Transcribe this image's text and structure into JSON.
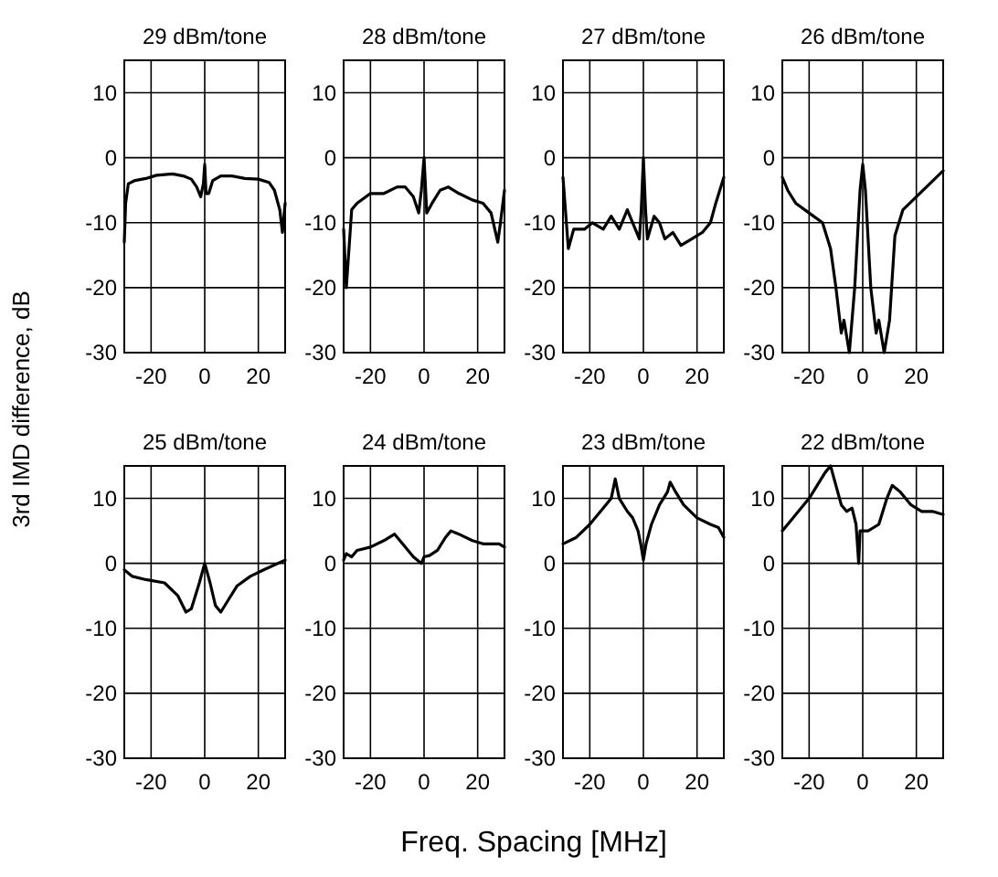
{
  "chart_data": [
    {
      "type": "line",
      "title": "29 dBm/tone",
      "ylabel": "3rd IMD difference, dB",
      "xlim": [
        -30,
        30
      ],
      "ylim": [
        -30,
        15
      ],
      "xticks": [
        -20,
        0,
        20
      ],
      "yticks": [
        -30,
        -20,
        -10,
        0,
        10
      ],
      "grid": true,
      "x": [
        -30,
        -29.5,
        -28.5,
        -26,
        -22,
        -18,
        -12,
        -8,
        -5,
        -3,
        -1.5,
        -0.5,
        0,
        0.5,
        1.5,
        3,
        6,
        10,
        15,
        20,
        24,
        26,
        28,
        29,
        30
      ],
      "series": [
        {
          "color": "#000000",
          "values": [
            -13,
            -7,
            -4,
            -3.5,
            -3.2,
            -2.7,
            -2.5,
            -2.8,
            -3.3,
            -4.5,
            -6,
            -4,
            -1,
            -5.5,
            -5.5,
            -3.5,
            -2.8,
            -2.8,
            -3.2,
            -3.3,
            -3.8,
            -5,
            -8,
            -11.5,
            -7
          ]
        }
      ]
    },
    {
      "type": "line",
      "title": "28 dBm/tone",
      "xlim": [
        -30,
        30
      ],
      "ylim": [
        -30,
        15
      ],
      "xticks": [
        -20,
        0,
        20
      ],
      "yticks": [
        -30,
        -20,
        -10,
        0,
        10
      ],
      "grid": true,
      "x": [
        -30,
        -29,
        -27,
        -25,
        -20,
        -15,
        -10,
        -7,
        -4,
        -2,
        -1,
        0,
        1,
        3,
        6,
        9,
        13,
        18,
        22,
        25,
        27.5,
        28.5,
        30
      ],
      "series": [
        {
          "color": "#000000",
          "values": [
            -11,
            -20,
            -8,
            -7,
            -5.5,
            -5.5,
            -4.5,
            -4.5,
            -6,
            -8.5,
            -5,
            0,
            -8.5,
            -7,
            -5,
            -4.5,
            -5.5,
            -6.5,
            -7,
            -8.5,
            -13,
            -10,
            -5
          ]
        }
      ]
    },
    {
      "type": "line",
      "title": "27 dBm/tone",
      "xlim": [
        -30,
        30
      ],
      "ylim": [
        -30,
        15
      ],
      "xticks": [
        -20,
        0,
        20
      ],
      "yticks": [
        -30,
        -20,
        -10,
        0,
        10
      ],
      "grid": true,
      "x": [
        -30,
        -28,
        -26,
        -22,
        -19,
        -15,
        -12,
        -9,
        -6,
        -4,
        -1.5,
        -0.8,
        0,
        0.8,
        1.5,
        4,
        6,
        8,
        11,
        14,
        18,
        22,
        25,
        27,
        30
      ],
      "series": [
        {
          "color": "#000000",
          "values": [
            -3,
            -14,
            -11,
            -11,
            -10,
            -11,
            -9,
            -11,
            -8,
            -10,
            -12.5,
            -8,
            0,
            -8,
            -12.5,
            -9,
            -10,
            -12.5,
            -11.5,
            -13.5,
            -12.5,
            -11.5,
            -10,
            -7,
            -3
          ]
        }
      ]
    },
    {
      "type": "line",
      "title": "26 dBm/tone",
      "xlim": [
        -30,
        30
      ],
      "ylim": [
        -30,
        15
      ],
      "xticks": [
        -20,
        0,
        20
      ],
      "yticks": [
        -30,
        -20,
        -10,
        0,
        10
      ],
      "grid": true,
      "x": [
        -30,
        -28,
        -25,
        -20,
        -15,
        -12,
        -10,
        -8,
        -7,
        -5,
        -3,
        -1,
        0,
        1,
        3,
        5,
        6,
        8,
        10,
        12,
        15,
        20,
        25,
        30
      ],
      "series": [
        {
          "color": "#000000",
          "values": [
            -3,
            -5,
            -7,
            -8.5,
            -10,
            -14,
            -20,
            -27,
            -25,
            -30,
            -20,
            -5,
            -1,
            -5,
            -20,
            -27,
            -25,
            -30,
            -25,
            -12,
            -8,
            -6,
            -4,
            -2
          ]
        }
      ]
    },
    {
      "type": "line",
      "title": "25 dBm/tone",
      "xlim": [
        -30,
        30
      ],
      "ylim": [
        -30,
        15
      ],
      "xticks": [
        -20,
        0,
        20
      ],
      "yticks": [
        -30,
        -20,
        -10,
        0,
        10
      ],
      "grid": true,
      "x": [
        -30,
        -27,
        -22,
        -15,
        -10,
        -7,
        -5,
        -2,
        0,
        2,
        4,
        6,
        9,
        12,
        17,
        22,
        30
      ],
      "series": [
        {
          "color": "#000000",
          "values": [
            -1,
            -2,
            -2.5,
            -3,
            -5,
            -7.5,
            -7,
            -3,
            0,
            -3,
            -6.5,
            -7.5,
            -5.5,
            -3.5,
            -2,
            -1,
            0.5
          ]
        }
      ]
    },
    {
      "type": "line",
      "title": "24 dBm/tone",
      "xlabel": "Freq. Spacing [MHz]",
      "xlim": [
        -30,
        30
      ],
      "ylim": [
        -30,
        15
      ],
      "xticks": [
        -20,
        0,
        20
      ],
      "yticks": [
        -30,
        -20,
        -10,
        0,
        10
      ],
      "grid": true,
      "x": [
        -30,
        -29,
        -27,
        -25,
        -20,
        -15,
        -11,
        -8,
        -4,
        -1,
        0,
        2,
        5,
        8,
        10,
        13,
        18,
        22,
        28,
        30
      ],
      "series": [
        {
          "color": "#000000",
          "values": [
            0.5,
            1.5,
            1,
            2,
            2.5,
            3.5,
            4.5,
            3,
            1,
            0,
            1,
            1.2,
            2,
            4,
            5,
            4.5,
            3.5,
            3,
            3,
            2.5
          ]
        }
      ]
    },
    {
      "type": "line",
      "title": "23 dBm/tone",
      "xlim": [
        -30,
        30
      ],
      "ylim": [
        -30,
        15
      ],
      "xticks": [
        -20,
        0,
        20
      ],
      "yticks": [
        -30,
        -20,
        -10,
        0,
        10
      ],
      "grid": true,
      "x": [
        -30,
        -25,
        -20,
        -15,
        -12,
        -10.5,
        -9,
        -6,
        -4,
        -2,
        -1,
        0,
        1,
        3,
        6,
        9,
        10,
        12,
        15,
        20,
        25,
        28,
        30
      ],
      "series": [
        {
          "color": "#000000",
          "values": [
            3,
            4,
            6,
            8.5,
            10,
            13,
            10,
            8,
            7,
            5,
            3,
            0.5,
            3,
            6,
            9,
            11,
            12.5,
            11,
            9,
            7,
            6,
            5.5,
            4
          ]
        }
      ]
    },
    {
      "type": "line",
      "title": "22 dBm/tone",
      "xlim": [
        -30,
        30
      ],
      "ylim": [
        -30,
        15
      ],
      "xticks": [
        -20,
        0,
        20
      ],
      "yticks": [
        -30,
        -20,
        -10,
        0,
        10
      ],
      "grid": true,
      "x": [
        -30,
        -27,
        -24,
        -20,
        -17,
        -14,
        -12,
        -10,
        -8,
        -6,
        -4,
        -2.5,
        -1.5,
        -1,
        2,
        6,
        9,
        11,
        14,
        18,
        22,
        26,
        30
      ],
      "series": [
        {
          "color": "#000000",
          "values": [
            5,
            6.5,
            8,
            10,
            12,
            14,
            15,
            12,
            9,
            8,
            8.5,
            6,
            0,
            5,
            5,
            6,
            10,
            12,
            11,
            9,
            8,
            8,
            7.5
          ]
        }
      ]
    }
  ]
}
